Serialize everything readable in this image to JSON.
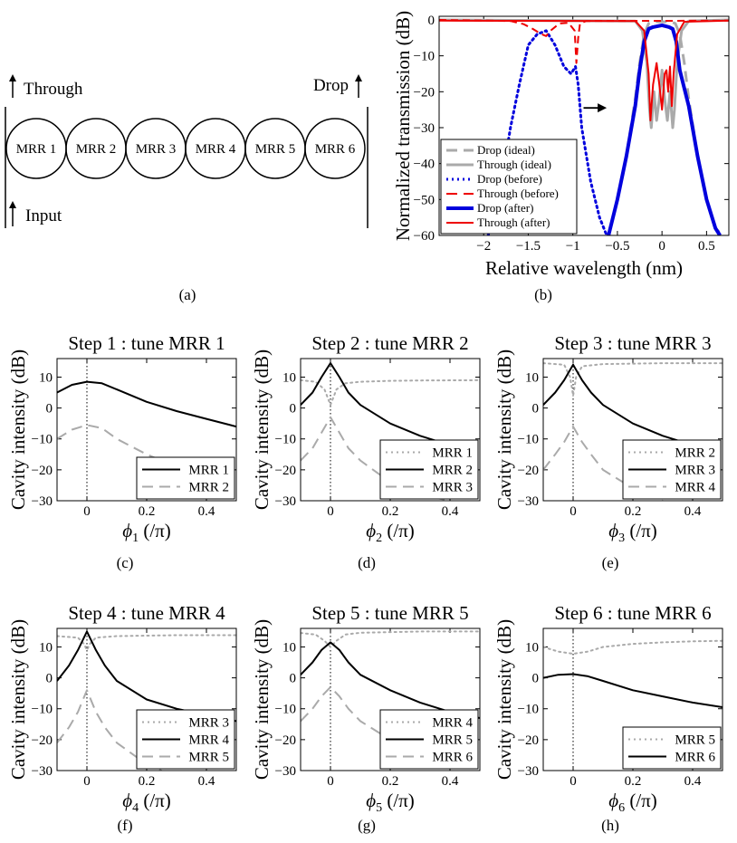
{
  "diagram": {
    "rings": [
      "MRR 1",
      "MRR 2",
      "MRR 3",
      "MRR 4",
      "MRR 5",
      "MRR 6"
    ],
    "through_label": "Through",
    "input_label": "Input",
    "drop_label": "Drop",
    "caption": "(a)"
  },
  "chart_data": [
    {
      "id": "b",
      "type": "line",
      "caption": "(b)",
      "title": "",
      "xlabel": "Relative wavelength (nm)",
      "ylabel": "Normalized transmission (dB)",
      "xlim": [
        -2.5,
        0.75
      ],
      "ylim": [
        -60,
        1
      ],
      "xticks": [
        -2,
        -1.5,
        -1,
        -0.5,
        0,
        0.5
      ],
      "xtick_labels": [
        "−2",
        "−1.5",
        "−1",
        "−0.5",
        "0",
        "0.5"
      ],
      "yticks": [
        0,
        -10,
        -20,
        -30,
        -40,
        -50,
        -60
      ],
      "ytick_labels": [
        "0",
        "−10",
        "−20",
        "−30",
        "−40",
        "−50",
        "−60"
      ],
      "legend_position": "bottom-left",
      "annotation": "arrow pointing right toward drop passband",
      "series": [
        {
          "name": "Drop (ideal)",
          "color": "#aaaaaa",
          "style": "dash",
          "width": 3,
          "x": [
            -0.6,
            -0.5,
            -0.4,
            -0.3,
            -0.25,
            -0.2,
            -0.15,
            -0.1,
            0,
            0.1,
            0.15,
            0.2,
            0.25,
            0.3,
            0.4,
            0.5,
            0.6,
            0.68
          ],
          "y": [
            -60,
            -50,
            -38,
            -22,
            -12,
            -4,
            -1,
            -0.5,
            -0.5,
            -0.5,
            -1,
            -4,
            -12,
            -22,
            -38,
            -50,
            -58,
            -60
          ]
        },
        {
          "name": "Through (ideal)",
          "color": "#aaaaaa",
          "style": "solid",
          "width": 3,
          "x": [
            -2.5,
            -0.3,
            -0.22,
            -0.17,
            -0.14,
            -0.12,
            -0.09,
            -0.06,
            -0.03,
            0,
            0.03,
            0.06,
            0.09,
            0.12,
            0.14,
            0.17,
            0.22,
            0.3,
            0.75
          ],
          "y": [
            0,
            -0.3,
            -3,
            -12,
            -25,
            -30,
            -20,
            -28,
            -22,
            -14,
            -22,
            -28,
            -20,
            -30,
            -25,
            -12,
            -3,
            -0.3,
            0
          ]
        },
        {
          "name": "Drop (before)",
          "color": "#0000dd",
          "style": "dot",
          "width": 3,
          "x": [
            -1.95,
            -1.8,
            -1.7,
            -1.6,
            -1.5,
            -1.4,
            -1.3,
            -1.2,
            -1.1,
            -1.02,
            -0.97,
            -0.94,
            -0.9,
            -0.8,
            -0.7,
            -0.62
          ],
          "y": [
            -60,
            -45,
            -30,
            -18,
            -7,
            -4,
            -3,
            -7,
            -13,
            -15,
            -13,
            -18,
            -30,
            -45,
            -55,
            -60
          ]
        },
        {
          "name": "Through (before)",
          "color": "#ee0000",
          "style": "dash",
          "width": 2,
          "x": [
            -2.5,
            -1.7,
            -1.55,
            -1.45,
            -1.35,
            -1.3,
            -1.25,
            -1.15,
            -1.05,
            -0.98,
            -0.96,
            -0.94,
            -0.92,
            -0.85,
            0.75
          ],
          "y": [
            0,
            -0.3,
            -1.2,
            -2.5,
            -4,
            -4.5,
            -3,
            -1,
            -0.8,
            -3,
            -12,
            -5,
            -1,
            -0.3,
            -0.2
          ]
        },
        {
          "name": "Drop (after)",
          "color": "#0000dd",
          "style": "solid",
          "width": 4,
          "x": [
            -0.6,
            -0.5,
            -0.4,
            -0.3,
            -0.25,
            -0.2,
            -0.15,
            -0.1,
            0,
            0.08,
            0.12,
            0.16,
            0.2,
            0.3,
            0.4,
            0.5,
            0.6,
            0.65
          ],
          "y": [
            -60,
            -50,
            -38,
            -24,
            -14,
            -6,
            -2.5,
            -2,
            -1.5,
            -2,
            -2.5,
            -6,
            -14,
            -24,
            -38,
            -50,
            -58,
            -60
          ]
        },
        {
          "name": "Through (after)",
          "color": "#ee0000",
          "style": "solid",
          "width": 2,
          "x": [
            -2.5,
            -0.3,
            -0.2,
            -0.15,
            -0.13,
            -0.1,
            -0.06,
            -0.03,
            0,
            0.03,
            0.05,
            0.07,
            0.09,
            0.11,
            0.13,
            0.17,
            0.25,
            0.75
          ],
          "y": [
            -0.2,
            -0.3,
            -3,
            -15,
            -28,
            -18,
            -12,
            -18,
            -25,
            -15,
            -14,
            -20,
            -13,
            -24,
            -15,
            -4,
            -0.5,
            -0.2
          ]
        }
      ]
    },
    {
      "id": "c",
      "type": "line",
      "caption": "(c)",
      "title": "Step 1 : tune MRR 1",
      "xlabel": "ϕ1 (/π)",
      "xsym": "ϕ",
      "xsub": "1",
      "xunit": "(/π)",
      "ylabel": "Cavity intensity (dB)",
      "xlim": [
        -0.1,
        0.5
      ],
      "ylim": [
        -30,
        16
      ],
      "xticks": [
        0,
        0.2,
        0.4
      ],
      "xtick_labels": [
        "0",
        "0.2",
        "0.4"
      ],
      "yticks": [
        10,
        0,
        -10,
        -20,
        -30
      ],
      "ytick_labels": [
        "10",
        "0",
        "−10",
        "−20",
        "−30"
      ],
      "legend_position": "bottom-right",
      "series": [
        {
          "name": "MRR 1",
          "color": "#000000",
          "style": "solid",
          "width": 2,
          "x": [
            -0.1,
            -0.05,
            0,
            0.05,
            0.1,
            0.2,
            0.3,
            0.4,
            0.5
          ],
          "y": [
            5,
            7.5,
            8.5,
            8,
            6,
            2,
            -1,
            -3.5,
            -6
          ]
        },
        {
          "name": "MRR 2",
          "color": "#aaaaaa",
          "style": "dash",
          "width": 2,
          "x": [
            -0.1,
            -0.05,
            0,
            0.05,
            0.1,
            0.2,
            0.3,
            0.4
          ],
          "y": [
            -10,
            -7,
            -5.5,
            -6.5,
            -10,
            -15,
            -19,
            -22
          ]
        }
      ]
    },
    {
      "id": "d",
      "type": "line",
      "caption": "(d)",
      "title": "Step 2 : tune MRR 2",
      "xlabel": "ϕ2 (/π)",
      "xsym": "ϕ",
      "xsub": "2",
      "xunit": "(/π)",
      "ylabel": "Cavity intensity (dB)",
      "xlim": [
        -0.1,
        0.5
      ],
      "ylim": [
        -30,
        16
      ],
      "xticks": [
        0,
        0.2,
        0.4
      ],
      "xtick_labels": [
        "0",
        "0.2",
        "0.4"
      ],
      "yticks": [
        10,
        0,
        -10,
        -20,
        -30
      ],
      "ytick_labels": [
        "10",
        "0",
        "−10",
        "−20",
        "−30"
      ],
      "legend_position": "bottom-right",
      "series": [
        {
          "name": "MRR 1",
          "color": "#aaaaaa",
          "style": "dot",
          "width": 2,
          "x": [
            -0.1,
            -0.05,
            -0.02,
            0,
            0.02,
            0.05,
            0.1,
            0.2,
            0.3,
            0.5
          ],
          "y": [
            9,
            8.5,
            6,
            1,
            6,
            8,
            8.5,
            8.8,
            8.9,
            9
          ]
        },
        {
          "name": "MRR 2",
          "color": "#000000",
          "style": "solid",
          "width": 2,
          "x": [
            -0.1,
            -0.06,
            -0.03,
            0,
            0.03,
            0.06,
            0.1,
            0.2,
            0.3,
            0.4
          ],
          "y": [
            1,
            5,
            10,
            14.5,
            10,
            5,
            1,
            -5,
            -9,
            -12
          ]
        },
        {
          "name": "MRR 3",
          "color": "#aaaaaa",
          "style": "dash",
          "width": 2,
          "x": [
            -0.1,
            -0.06,
            -0.03,
            0,
            0.03,
            0.06,
            0.1,
            0.2,
            0.3,
            0.4
          ],
          "y": [
            -17,
            -13,
            -8,
            -3,
            -8,
            -13,
            -17,
            -24,
            -28,
            -30
          ]
        }
      ]
    },
    {
      "id": "e",
      "type": "line",
      "caption": "(e)",
      "title": "Step 3 : tune MRR 3",
      "xlabel": "ϕ3 (/π)",
      "xsym": "ϕ",
      "xsub": "3",
      "xunit": "(/π)",
      "ylabel": "Cavity intensity (dB)",
      "xlim": [
        -0.1,
        0.5
      ],
      "ylim": [
        -30,
        16
      ],
      "xticks": [
        0,
        0.2,
        0.4
      ],
      "xtick_labels": [
        "0",
        "0.2",
        "0.4"
      ],
      "yticks": [
        10,
        0,
        -10,
        -20,
        -30
      ],
      "ytick_labels": [
        "10",
        "0",
        "−10",
        "−20",
        "−30"
      ],
      "legend_position": "bottom-right",
      "series": [
        {
          "name": "MRR 2",
          "color": "#aaaaaa",
          "style": "dot",
          "width": 2,
          "x": [
            -0.1,
            -0.03,
            -0.01,
            0,
            0.01,
            0.03,
            0.1,
            0.3,
            0.5
          ],
          "y": [
            14.5,
            14,
            10,
            4,
            10,
            13.5,
            14.2,
            14.5,
            14.5
          ]
        },
        {
          "name": "MRR 3",
          "color": "#000000",
          "style": "solid",
          "width": 2,
          "x": [
            -0.1,
            -0.06,
            -0.03,
            0,
            0.03,
            0.06,
            0.1,
            0.2,
            0.3,
            0.4
          ],
          "y": [
            1,
            5,
            9,
            14,
            9,
            5,
            1,
            -5,
            -9,
            -12
          ]
        },
        {
          "name": "MRR 4",
          "color": "#aaaaaa",
          "style": "dash",
          "width": 2,
          "x": [
            -0.1,
            -0.06,
            -0.03,
            0,
            0.03,
            0.06,
            0.1,
            0.2,
            0.3
          ],
          "y": [
            -20,
            -15,
            -11,
            -6,
            -11,
            -15,
            -20,
            -26,
            -30
          ]
        }
      ]
    },
    {
      "id": "f",
      "type": "line",
      "caption": "(f)",
      "title": "Step 4 : tune MRR 4",
      "xlabel": "ϕ4 (/π)",
      "xsym": "ϕ",
      "xsub": "4",
      "xunit": "(/π)",
      "ylabel": "Cavity intensity (dB)",
      "xlim": [
        -0.1,
        0.5
      ],
      "ylim": [
        -30,
        16
      ],
      "xticks": [
        0,
        0.2,
        0.4
      ],
      "xtick_labels": [
        "0",
        "0.2",
        "0.4"
      ],
      "yticks": [
        10,
        0,
        -10,
        -20,
        -30
      ],
      "ytick_labels": [
        "10",
        "0",
        "−10",
        "−20",
        "−30"
      ],
      "legend_position": "bottom-right",
      "series": [
        {
          "name": "MRR 3",
          "color": "#aaaaaa",
          "style": "dot",
          "width": 2,
          "x": [
            -0.1,
            -0.03,
            -0.01,
            0,
            0.01,
            0.03,
            0.1,
            0.3,
            0.5
          ],
          "y": [
            13.5,
            13,
            11,
            9,
            11,
            13,
            13.5,
            13.8,
            13.8
          ]
        },
        {
          "name": "MRR 4",
          "color": "#000000",
          "style": "solid",
          "width": 2,
          "x": [
            -0.1,
            -0.06,
            -0.03,
            0,
            0.03,
            0.06,
            0.1,
            0.2,
            0.3,
            0.4,
            0.5
          ],
          "y": [
            -1,
            4,
            9,
            15,
            9,
            4,
            -1,
            -7,
            -10,
            -12,
            -14
          ]
        },
        {
          "name": "MRR 5",
          "color": "#aaaaaa",
          "style": "dash",
          "width": 2,
          "x": [
            -0.1,
            -0.06,
            -0.03,
            0,
            0.03,
            0.06,
            0.1,
            0.2,
            0.25
          ],
          "y": [
            -21,
            -16,
            -11,
            -4,
            -11,
            -16,
            -21,
            -28,
            -30
          ]
        }
      ]
    },
    {
      "id": "g",
      "type": "line",
      "caption": "(g)",
      "title": "Step 5 : tune MRR 5",
      "xlabel": "ϕ5 (/π)",
      "xsym": "ϕ",
      "xsub": "5",
      "xunit": "(/π)",
      "ylabel": "Cavity intensity (dB)",
      "xlim": [
        -0.1,
        0.5
      ],
      "ylim": [
        -30,
        16
      ],
      "xticks": [
        0,
        0.2,
        0.4
      ],
      "xtick_labels": [
        "0",
        "0.2",
        "0.4"
      ],
      "yticks": [
        10,
        0,
        -10,
        -20,
        -30
      ],
      "ytick_labels": [
        "10",
        "0",
        "−10",
        "−20",
        "−30"
      ],
      "legend_position": "bottom-right",
      "series": [
        {
          "name": "MRR 4",
          "color": "#aaaaaa",
          "style": "dot",
          "width": 2,
          "x": [
            -0.1,
            -0.05,
            -0.02,
            0,
            0.02,
            0.05,
            0.1,
            0.3,
            0.5
          ],
          "y": [
            14.5,
            14,
            12,
            10,
            12,
            14,
            14.6,
            15,
            15
          ]
        },
        {
          "name": "MRR 5",
          "color": "#000000",
          "style": "solid",
          "width": 2,
          "x": [
            -0.1,
            -0.06,
            -0.03,
            0,
            0.03,
            0.06,
            0.1,
            0.2,
            0.3,
            0.4,
            0.5
          ],
          "y": [
            1,
            5,
            9,
            11.5,
            9,
            5,
            1,
            -4,
            -8,
            -11,
            -13
          ]
        },
        {
          "name": "MRR 6",
          "color": "#aaaaaa",
          "style": "dash",
          "width": 2,
          "x": [
            -0.1,
            -0.06,
            -0.03,
            0,
            0.03,
            0.06,
            0.1,
            0.2,
            0.3,
            0.4
          ],
          "y": [
            -14,
            -10,
            -6,
            -3,
            -6,
            -10,
            -14,
            -20,
            -25,
            -28
          ]
        }
      ]
    },
    {
      "id": "h",
      "type": "line",
      "caption": "(h)",
      "title": "Step 6 : tune MRR 6",
      "xlabel": "ϕ6 (/π)",
      "xsym": "ϕ",
      "xsub": "6",
      "xunit": "(/π)",
      "ylabel": "Cavity intensity (dB)",
      "xlim": [
        -0.1,
        0.5
      ],
      "ylim": [
        -30,
        16
      ],
      "xticks": [
        0,
        0.2,
        0.4
      ],
      "xtick_labels": [
        "0",
        "0.2",
        "0.4"
      ],
      "yticks": [
        10,
        0,
        -10,
        -20,
        -30
      ],
      "ytick_labels": [
        "10",
        "0",
        "−10",
        "−20",
        "−30"
      ],
      "legend_position": "bottom-right",
      "series": [
        {
          "name": "MRR 5",
          "color": "#aaaaaa",
          "style": "dot",
          "width": 2,
          "x": [
            -0.1,
            -0.05,
            0,
            0.05,
            0.1,
            0.2,
            0.3,
            0.4,
            0.5
          ],
          "y": [
            10,
            8.5,
            7.8,
            8.5,
            10,
            11,
            11.5,
            11.8,
            12
          ]
        },
        {
          "name": "MRR 6",
          "color": "#000000",
          "style": "solid",
          "width": 2,
          "x": [
            -0.1,
            -0.05,
            0,
            0.05,
            0.1,
            0.2,
            0.3,
            0.4,
            0.5
          ],
          "y": [
            0,
            1,
            1.2,
            0.5,
            -1,
            -4,
            -6,
            -8,
            -9.5
          ]
        }
      ]
    }
  ]
}
